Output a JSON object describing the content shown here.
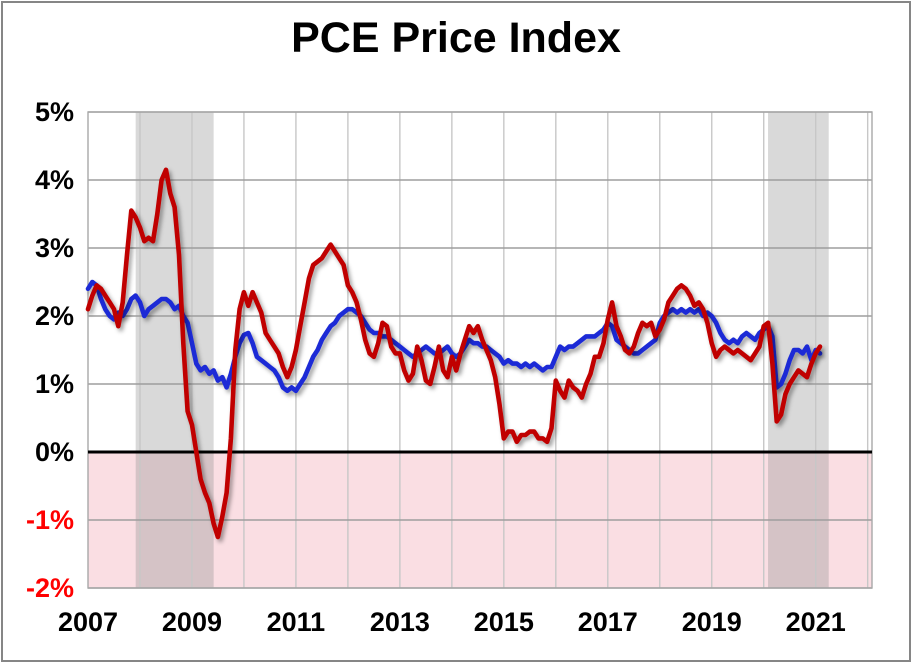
{
  "title": "PCE Price Index",
  "colors": {
    "red_line": "#C00000",
    "blue_line": "#1C2BD6",
    "negative_region": "#FADEE3",
    "recession_band": "#8C8C8C",
    "zero_line": "#000000",
    "horizontal_gridline": "#9E9E9E",
    "vertical_gridline": "#C7C7C7",
    "plot_border": "#A8A8A8",
    "negative_tick_label": "#FF0000",
    "positive_tick_label": "#000000"
  },
  "chart_data": {
    "type": "line",
    "title": "PCE Price Index",
    "xlabel": "",
    "ylabel": "",
    "grid": true,
    "legend_position": "none",
    "ylim": [
      -2,
      5
    ],
    "x_domain": [
      2007.0,
      2022.083
    ],
    "y_ticks": [
      {
        "label": "5%",
        "value": 5,
        "color": "#000000"
      },
      {
        "label": "4%",
        "value": 4,
        "color": "#000000"
      },
      {
        "label": "3%",
        "value": 3,
        "color": "#000000"
      },
      {
        "label": "2%",
        "value": 2,
        "color": "#000000"
      },
      {
        "label": "1%",
        "value": 1,
        "color": "#000000"
      },
      {
        "label": "0%",
        "value": 0,
        "color": "#000000"
      },
      {
        "label": "-1%",
        "value": -1,
        "color": "#FF0000"
      },
      {
        "label": "-2%",
        "value": -2,
        "color": "#FF0000"
      }
    ],
    "x_ticks": [
      {
        "label": "2007",
        "year": 2007
      },
      {
        "label": "2009",
        "year": 2009
      },
      {
        "label": "2011",
        "year": 2011
      },
      {
        "label": "2013",
        "year": 2013
      },
      {
        "label": "2015",
        "year": 2015
      },
      {
        "label": "2017",
        "year": 2017
      },
      {
        "label": "2019",
        "year": 2019
      },
      {
        "label": "2021",
        "year": 2021
      }
    ],
    "year_gridlines": [
      2008,
      2009,
      2010,
      2011,
      2012,
      2013,
      2014,
      2015,
      2016,
      2017,
      2018,
      2019,
      2020,
      2021,
      2022
    ],
    "recession_bands": [
      {
        "start": 2007.917,
        "end": 2009.417
      },
      {
        "start": 2020.083,
        "end": 2021.25
      }
    ],
    "negative_region": {
      "from": -2,
      "to": 0
    },
    "series": [
      {
        "name": "blue-series",
        "color": "#1C2BD6",
        "start_year": 2007,
        "start_month": 1,
        "frequency": "monthly",
        "unit": "percent-yoy",
        "values": [
          2.4,
          2.5,
          2.45,
          2.25,
          2.1,
          2.0,
          1.95,
          2.05,
          2.0,
          2.1,
          2.25,
          2.3,
          2.2,
          2.0,
          2.1,
          2.15,
          2.2,
          2.25,
          2.25,
          2.2,
          2.1,
          2.15,
          2.0,
          1.9,
          1.6,
          1.3,
          1.2,
          1.25,
          1.15,
          1.2,
          1.05,
          1.1,
          0.95,
          1.15,
          1.4,
          1.6,
          1.72,
          1.75,
          1.6,
          1.4,
          1.35,
          1.3,
          1.25,
          1.2,
          1.1,
          0.95,
          0.9,
          0.95,
          0.9,
          1.0,
          1.1,
          1.25,
          1.4,
          1.5,
          1.65,
          1.75,
          1.85,
          1.9,
          2.0,
          2.05,
          2.1,
          2.1,
          2.05,
          2.0,
          1.9,
          1.8,
          1.75,
          1.75,
          1.7,
          1.7,
          1.65,
          1.6,
          1.55,
          1.5,
          1.45,
          1.4,
          1.45,
          1.5,
          1.55,
          1.5,
          1.45,
          1.45,
          1.5,
          1.55,
          1.45,
          1.4,
          1.45,
          1.55,
          1.65,
          1.6,
          1.6,
          1.55,
          1.55,
          1.5,
          1.45,
          1.4,
          1.3,
          1.35,
          1.3,
          1.3,
          1.25,
          1.3,
          1.25,
          1.3,
          1.25,
          1.2,
          1.25,
          1.25,
          1.4,
          1.55,
          1.5,
          1.55,
          1.55,
          1.6,
          1.65,
          1.7,
          1.7,
          1.7,
          1.75,
          1.8,
          1.9,
          1.85,
          1.65,
          1.6,
          1.55,
          1.5,
          1.45,
          1.45,
          1.5,
          1.55,
          1.6,
          1.65,
          1.9,
          2.0,
          2.05,
          2.1,
          2.05,
          2.1,
          2.05,
          2.1,
          2.05,
          2.1,
          2.0,
          2.05,
          2.0,
          1.9,
          1.75,
          1.65,
          1.6,
          1.65,
          1.6,
          1.7,
          1.75,
          1.7,
          1.65,
          1.75,
          1.8,
          1.85,
          1.7,
          0.95,
          1.0,
          1.15,
          1.35,
          1.5,
          1.5,
          1.45,
          1.55,
          1.35,
          1.5,
          1.45
        ]
      },
      {
        "name": "red-series",
        "color": "#C00000",
        "start_year": 2007,
        "start_month": 1,
        "frequency": "monthly",
        "unit": "percent-yoy",
        "values": [
          2.1,
          2.3,
          2.45,
          2.4,
          2.3,
          2.2,
          2.1,
          1.85,
          2.2,
          2.9,
          3.55,
          3.45,
          3.3,
          3.1,
          3.15,
          3.1,
          3.5,
          4.0,
          4.15,
          3.8,
          3.6,
          2.9,
          1.6,
          0.6,
          0.4,
          0.0,
          -0.4,
          -0.6,
          -0.75,
          -1.05,
          -1.25,
          -0.95,
          -0.6,
          0.2,
          1.5,
          2.1,
          2.35,
          2.15,
          2.35,
          2.2,
          2.05,
          1.75,
          1.65,
          1.55,
          1.45,
          1.25,
          1.1,
          1.25,
          1.5,
          1.85,
          2.2,
          2.55,
          2.75,
          2.8,
          2.85,
          2.95,
          3.05,
          2.95,
          2.85,
          2.75,
          2.45,
          2.35,
          2.2,
          1.95,
          1.65,
          1.45,
          1.4,
          1.6,
          1.9,
          1.85,
          1.55,
          1.45,
          1.45,
          1.2,
          1.05,
          1.15,
          1.55,
          1.35,
          1.05,
          1.0,
          1.25,
          1.55,
          1.2,
          1.1,
          1.4,
          1.2,
          1.45,
          1.65,
          1.85,
          1.75,
          1.85,
          1.65,
          1.5,
          1.35,
          1.1,
          0.7,
          0.2,
          0.3,
          0.3,
          0.15,
          0.25,
          0.25,
          0.3,
          0.3,
          0.2,
          0.2,
          0.15,
          0.35,
          1.05,
          0.9,
          0.8,
          1.05,
          0.95,
          0.9,
          0.8,
          1.0,
          1.15,
          1.4,
          1.4,
          1.6,
          1.95,
          2.2,
          1.85,
          1.7,
          1.5,
          1.45,
          1.55,
          1.75,
          1.9,
          1.85,
          1.9,
          1.7,
          1.8,
          1.95,
          2.2,
          2.3,
          2.4,
          2.45,
          2.4,
          2.3,
          2.15,
          2.2,
          2.1,
          1.9,
          1.6,
          1.4,
          1.5,
          1.55,
          1.5,
          1.45,
          1.5,
          1.45,
          1.4,
          1.35,
          1.45,
          1.55,
          1.85,
          1.9,
          1.3,
          0.45,
          0.55,
          0.85,
          1.0,
          1.1,
          1.2,
          1.15,
          1.1,
          1.3,
          1.45,
          1.55
        ]
      }
    ]
  }
}
